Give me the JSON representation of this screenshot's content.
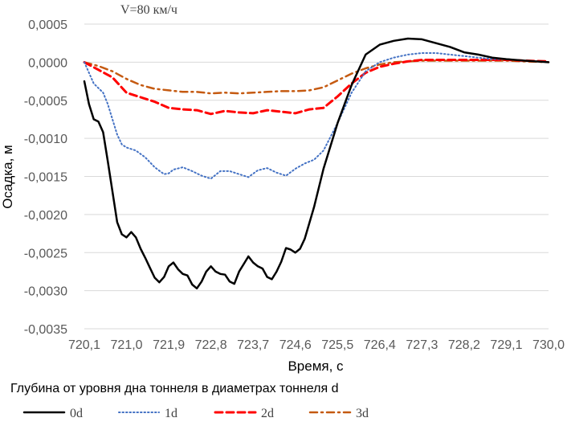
{
  "chart_data": {
    "type": "line",
    "title": "V=80 км/ч",
    "xlabel": "Время, с",
    "ylabel": "Осадка, м",
    "x_ticks": [
      "720,1",
      "721,0",
      "721,9",
      "722,8",
      "723,7",
      "724,6",
      "725,5",
      "726,4",
      "727,3",
      "728,2",
      "729,1",
      "730,0"
    ],
    "x_range": [
      720.1,
      730.0
    ],
    "y_ticks": [
      "0,0005",
      "0,0000",
      "-0,0005",
      "-0,0010",
      "-0,0015",
      "-0,0020",
      "-0,0025",
      "-0,0030",
      "-0,0035"
    ],
    "ylim": [
      -0.0035,
      0.0005
    ],
    "grid": "horizontal",
    "legend_title": "Глубина от уровня дна тоннеля в диаметрах тоннеля d",
    "legend_position": "bottom",
    "series": [
      {
        "name": "0d",
        "color": "#000000",
        "style": "solid",
        "x": [
          720.1,
          720.2,
          720.3,
          720.4,
          720.5,
          720.6,
          720.8,
          720.9,
          721.0,
          721.1,
          721.2,
          721.3,
          721.4,
          721.5,
          721.6,
          721.7,
          721.8,
          721.9,
          722.0,
          722.1,
          722.2,
          722.3,
          722.4,
          722.5,
          722.6,
          722.7,
          722.8,
          722.9,
          723.0,
          723.1,
          723.2,
          723.3,
          723.4,
          723.5,
          723.6,
          723.7,
          723.8,
          723.9,
          724.0,
          724.1,
          724.2,
          724.3,
          724.4,
          724.5,
          724.6,
          724.7,
          724.8,
          725.0,
          725.2,
          725.5,
          725.8,
          726.1,
          726.4,
          726.7,
          727.0,
          727.3,
          727.6,
          727.9,
          728.2,
          728.5,
          728.8,
          729.1,
          729.5,
          730.0
        ],
        "y": [
          -0.00025,
          -0.00055,
          -0.00075,
          -0.00078,
          -0.00092,
          -0.0013,
          -0.0021,
          -0.00226,
          -0.0023,
          -0.00223,
          -0.0023,
          -0.00245,
          -0.00257,
          -0.0027,
          -0.00283,
          -0.00289,
          -0.00282,
          -0.00268,
          -0.00263,
          -0.00272,
          -0.00278,
          -0.0028,
          -0.00292,
          -0.00297,
          -0.00288,
          -0.00275,
          -0.00268,
          -0.00275,
          -0.00278,
          -0.00279,
          -0.00288,
          -0.00291,
          -0.00275,
          -0.00265,
          -0.00255,
          -0.00263,
          -0.00268,
          -0.00271,
          -0.00282,
          -0.00285,
          -0.00275,
          -0.00262,
          -0.00244,
          -0.00246,
          -0.0025,
          -0.00245,
          -0.00232,
          -0.0019,
          -0.0014,
          -0.0008,
          -0.0003,
          0.0001,
          0.00023,
          0.00028,
          0.00031,
          0.0003,
          0.00025,
          0.0002,
          0.00013,
          0.0001,
          6e-05,
          4e-05,
          2e-05,
          0.0
        ]
      },
      {
        "name": "1d",
        "color": "#4472c4",
        "style": "dotted",
        "x": [
          720.1,
          720.3,
          720.5,
          720.6,
          720.7,
          720.8,
          720.9,
          721.0,
          721.2,
          721.4,
          721.6,
          721.8,
          721.9,
          722.0,
          722.2,
          722.4,
          722.6,
          722.8,
          723.0,
          723.2,
          723.4,
          723.6,
          723.8,
          724.0,
          724.2,
          724.4,
          724.6,
          724.8,
          725.0,
          725.2,
          725.5,
          725.8,
          726.1,
          726.4,
          726.7,
          727.0,
          727.3,
          727.6,
          727.9,
          728.2,
          728.5,
          728.8,
          729.1,
          729.5,
          730.0
        ],
        "y": [
          0.0,
          -0.00028,
          -0.0004,
          -0.00055,
          -0.00075,
          -0.00095,
          -0.00108,
          -0.00112,
          -0.00116,
          -0.00125,
          -0.00138,
          -0.00147,
          -0.00146,
          -0.00141,
          -0.00138,
          -0.00143,
          -0.00149,
          -0.00153,
          -0.00143,
          -0.00143,
          -0.00147,
          -0.00151,
          -0.00142,
          -0.00139,
          -0.00145,
          -0.00149,
          -0.0014,
          -0.00133,
          -0.00128,
          -0.00116,
          -0.0008,
          -0.0004,
          -0.00012,
          0.0,
          6e-05,
          0.0001,
          0.00012,
          0.00012,
          0.0001,
          8e-05,
          6e-05,
          4e-05,
          4e-05,
          2e-05,
          0.0
        ]
      },
      {
        "name": "2d",
        "color": "#ff0000",
        "style": "dashed",
        "x": [
          720.1,
          720.4,
          720.7,
          721.0,
          721.3,
          721.6,
          721.9,
          722.2,
          722.5,
          722.8,
          723.1,
          723.4,
          723.7,
          724.0,
          724.3,
          724.6,
          724.9,
          725.2,
          725.5,
          725.8,
          726.1,
          726.4,
          726.7,
          727.0,
          727.3,
          727.6,
          727.9,
          728.2,
          728.5,
          728.8,
          729.1,
          729.5,
          730.0
        ],
        "y": [
          0.0,
          -0.0001,
          -0.0002,
          -0.0004,
          -0.00046,
          -0.00052,
          -0.0006,
          -0.00062,
          -0.00063,
          -0.00068,
          -0.00064,
          -0.00066,
          -0.00067,
          -0.00063,
          -0.00065,
          -0.00067,
          -0.00062,
          -0.0006,
          -0.00045,
          -0.00028,
          -0.00014,
          -6e-05,
          -2e-05,
          1e-05,
          3e-05,
          3e-05,
          3e-05,
          3e-05,
          3e-05,
          3e-05,
          3e-05,
          2e-05,
          1e-05
        ]
      },
      {
        "name": "3d",
        "color": "#c55a11",
        "style": "dash-dot",
        "x": [
          720.1,
          720.4,
          720.7,
          721.0,
          721.3,
          721.6,
          721.9,
          722.2,
          722.5,
          722.8,
          723.1,
          723.4,
          723.7,
          724.0,
          724.3,
          724.6,
          724.9,
          725.2,
          725.5,
          725.8,
          726.1,
          726.4,
          726.7,
          727.0,
          727.3,
          727.6,
          727.9,
          728.2,
          728.5,
          728.8,
          729.1,
          729.5,
          730.0
        ],
        "y": [
          0.0,
          -5e-05,
          -0.00012,
          -0.00022,
          -0.0003,
          -0.00035,
          -0.00037,
          -0.00039,
          -0.00039,
          -0.00041,
          -0.0004,
          -0.00041,
          -0.0004,
          -0.00039,
          -0.00038,
          -0.00038,
          -0.00037,
          -0.00033,
          -0.00024,
          -0.00015,
          -8e-05,
          -3e-05,
          0.0,
          1e-05,
          2e-05,
          2e-05,
          2e-05,
          2e-05,
          2e-05,
          2e-05,
          2e-05,
          1e-05,
          0.0
        ]
      }
    ]
  }
}
